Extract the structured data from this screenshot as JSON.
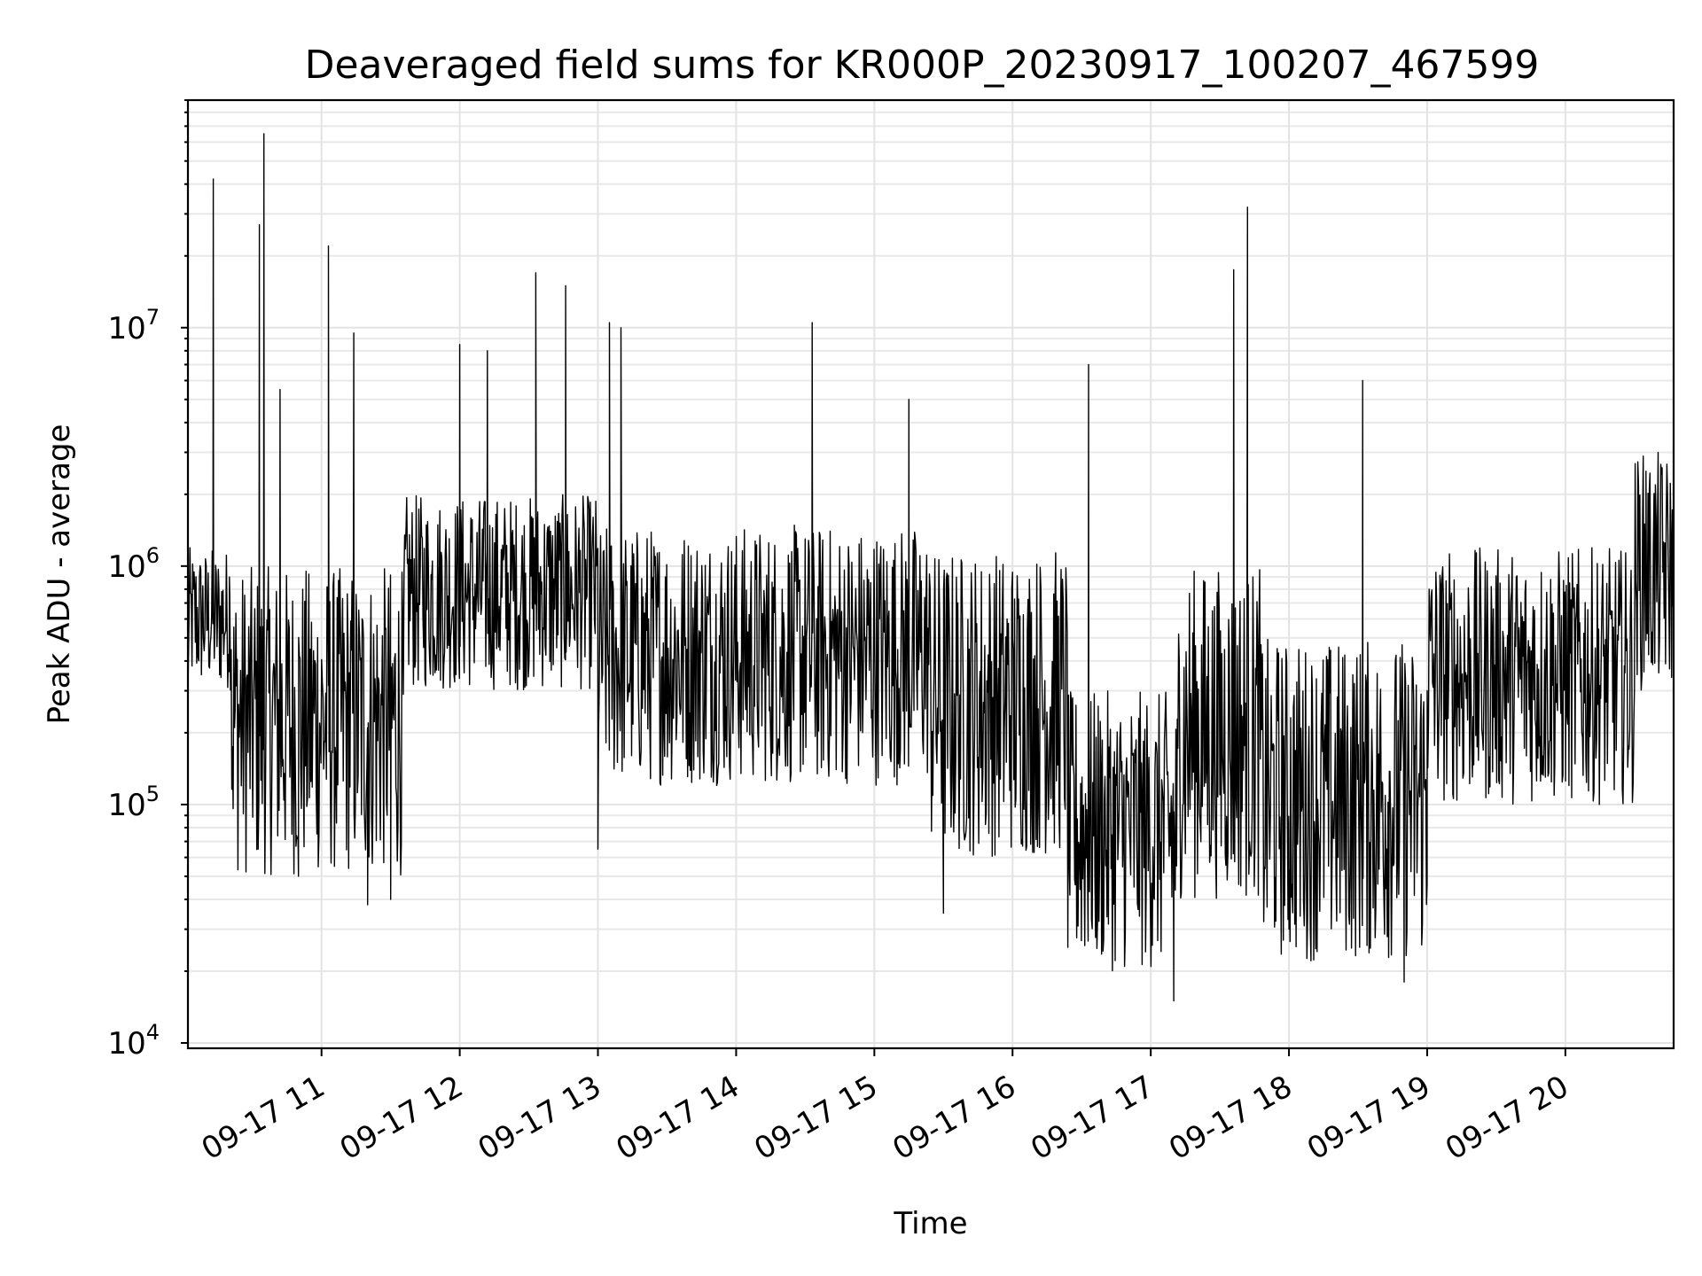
{
  "chart_data": {
    "type": "line",
    "title": "Deaveraged field sums for KR000P_20230917_100207_467599",
    "xlabel": "Time",
    "ylabel": "Peak ADU - average",
    "yscale": "log",
    "ylim": [
      9500,
      90000000
    ],
    "xlim": [
      "2023-09-17 10:02",
      "2023-09-17 20:47"
    ],
    "grid": true,
    "x_ticks": [
      "09-17 11",
      "09-17 12",
      "09-17 13",
      "09-17 14",
      "09-17 15",
      "09-17 16",
      "09-17 17",
      "09-17 18",
      "09-17 19",
      "09-17 20"
    ],
    "y_ticks": [
      {
        "base": "10",
        "exp": "4"
      },
      {
        "base": "10",
        "exp": "5"
      },
      {
        "base": "10",
        "exp": "6"
      },
      {
        "base": "10",
        "exp": "7"
      }
    ],
    "series": [
      {
        "color": "#000000",
        "note_points": "hourly typical levels and notable spikes (peak ADU) read from the plot",
        "points": [
          {
            "t": "2023-09-17 10:02",
            "v": 300000
          },
          {
            "t": "2023-09-17 10:13",
            "v": 42000000
          },
          {
            "t": "2023-09-17 10:20",
            "v": 900000
          },
          {
            "t": "2023-09-17 10:33",
            "v": 27000000
          },
          {
            "t": "2023-09-17 10:35",
            "v": 65000000
          },
          {
            "t": "2023-09-17 10:42",
            "v": 5500000
          },
          {
            "t": "2023-09-17 10:50",
            "v": 50000
          },
          {
            "t": "2023-09-17 11:03",
            "v": 22000000
          },
          {
            "t": "2023-09-17 11:14",
            "v": 9500000
          },
          {
            "t": "2023-09-17 11:20",
            "v": 38000
          },
          {
            "t": "2023-09-17 11:30",
            "v": 40000
          },
          {
            "t": "2023-09-17 12:00",
            "v": 8500000
          },
          {
            "t": "2023-09-17 12:12",
            "v": 8000000
          },
          {
            "t": "2023-09-17 12:33",
            "v": 17000000
          },
          {
            "t": "2023-09-17 12:46",
            "v": 15000000
          },
          {
            "t": "2023-09-17 13:00",
            "v": 65000
          },
          {
            "t": "2023-09-17 13:05",
            "v": 10500000
          },
          {
            "t": "2023-09-17 13:10",
            "v": 10000000
          },
          {
            "t": "2023-09-17 14:00",
            "v": 900000
          },
          {
            "t": "2023-09-17 14:33",
            "v": 10500000
          },
          {
            "t": "2023-09-17 15:15",
            "v": 5000000
          },
          {
            "t": "2023-09-17 15:30",
            "v": 35000
          },
          {
            "t": "2023-09-17 16:00",
            "v": 500000
          },
          {
            "t": "2023-09-17 16:33",
            "v": 7000000
          },
          {
            "t": "2023-09-17 17:00",
            "v": 25000
          },
          {
            "t": "2023-09-17 17:10",
            "v": 15000
          },
          {
            "t": "2023-09-17 17:36",
            "v": 17500000
          },
          {
            "t": "2023-09-17 17:42",
            "v": 32000000
          },
          {
            "t": "2023-09-17 18:00",
            "v": 30000
          },
          {
            "t": "2023-09-17 18:32",
            "v": 6000000
          },
          {
            "t": "2023-09-17 18:50",
            "v": 18000
          },
          {
            "t": "2023-09-17 19:00",
            "v": 300000
          },
          {
            "t": "2023-09-17 20:00",
            "v": 500000
          },
          {
            "t": "2023-09-17 20:35",
            "v": 2500000
          },
          {
            "t": "2023-09-17 20:47",
            "v": 1500000
          }
        ]
      }
    ]
  }
}
